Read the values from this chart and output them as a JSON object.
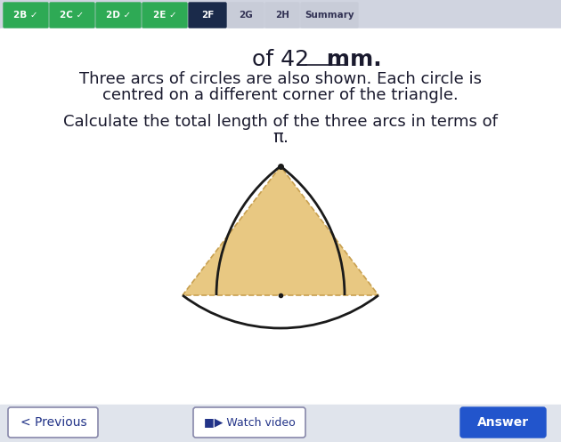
{
  "bg_color": "#e8eaf0",
  "content_bg": "#f5f5f5",
  "nav_tabs": [
    "2B",
    "2C",
    "2D",
    "2E",
    "2F",
    "2G",
    "2H",
    "Summary"
  ],
  "nav_active": "2F",
  "nav_checked": [
    "2B",
    "2C",
    "2D",
    "2E"
  ],
  "text_line1": "of 42 mm.",
  "text_line2": "Three arcs of circles are also shown. Each circle is",
  "text_line3": "centred on a different corner of the triangle.",
  "text_line4": "Calculate the total length of the three arcs in terms of",
  "text_pi": "π.",
  "triangle_fill": "#e8c882",
  "triangle_edge_color": "#c8a050",
  "arc_color": "#1a1a1a",
  "dot_color": "#1a1a1a",
  "prev_btn_text": "< Previous",
  "watch_btn_text": "■▶ Watch video",
  "answer_btn_text": "Answer",
  "title_color": "#1a1a2e",
  "text_color": "#1a1a2e"
}
